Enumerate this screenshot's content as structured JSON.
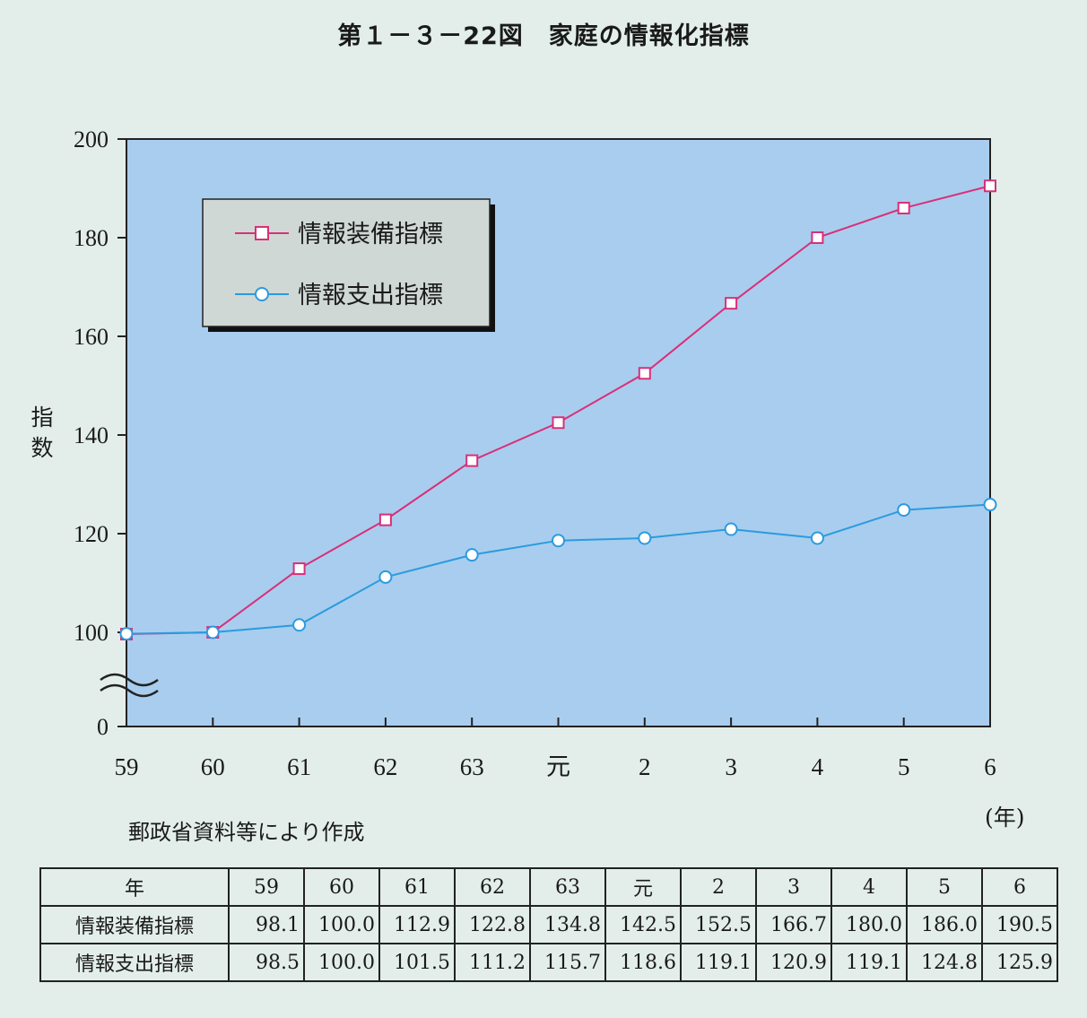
{
  "title": "第１－３－22図　家庭の情報化指標",
  "source_note": "郵政省資料等により作成",
  "unit_label": "(年)",
  "colors": {
    "plot_bg": "#a9cdee",
    "equipment": "#d8307a",
    "expenditure": "#2a9be0"
  },
  "chart_data": {
    "type": "line",
    "title": "第１－３－22図　家庭の情報化指標",
    "xlabel": "",
    "ylabel": "指数",
    "categories": [
      "59",
      "60",
      "61",
      "62",
      "63",
      "元",
      "2",
      "3",
      "4",
      "5",
      "6"
    ],
    "y_ticks": [
      "0",
      "100",
      "120",
      "140",
      "160",
      "180",
      "200"
    ],
    "ylim": [
      0,
      200
    ],
    "y_axis_break": "0–100",
    "legend_position": "top-left",
    "grid": false,
    "series": [
      {
        "name": "情報装備指標",
        "marker": "square",
        "color": "#d8307a",
        "values": [
          98.1,
          100.0,
          112.9,
          122.8,
          134.8,
          142.5,
          152.5,
          166.7,
          180.0,
          186.0,
          190.5
        ]
      },
      {
        "name": "情報支出指標",
        "marker": "circle",
        "color": "#2a9be0",
        "values": [
          98.5,
          100.0,
          101.5,
          111.2,
          115.7,
          118.6,
          119.1,
          120.9,
          119.1,
          124.8,
          125.9
        ]
      }
    ]
  },
  "table": {
    "header_label": "年",
    "years": [
      "59",
      "60",
      "61",
      "62",
      "63",
      "元",
      "2",
      "3",
      "4",
      "5",
      "6"
    ],
    "rows": [
      {
        "label": "情報装備指標",
        "values": [
          "98.1",
          "100.0",
          "112.9",
          "122.8",
          "134.8",
          "142.5",
          "152.5",
          "166.7",
          "180.0",
          "186.0",
          "190.5"
        ]
      },
      {
        "label": "情報支出指標",
        "values": [
          "98.5",
          "100.0",
          "101.5",
          "111.2",
          "115.7",
          "118.6",
          "119.1",
          "120.9",
          "119.1",
          "124.8",
          "125.9"
        ]
      }
    ]
  }
}
